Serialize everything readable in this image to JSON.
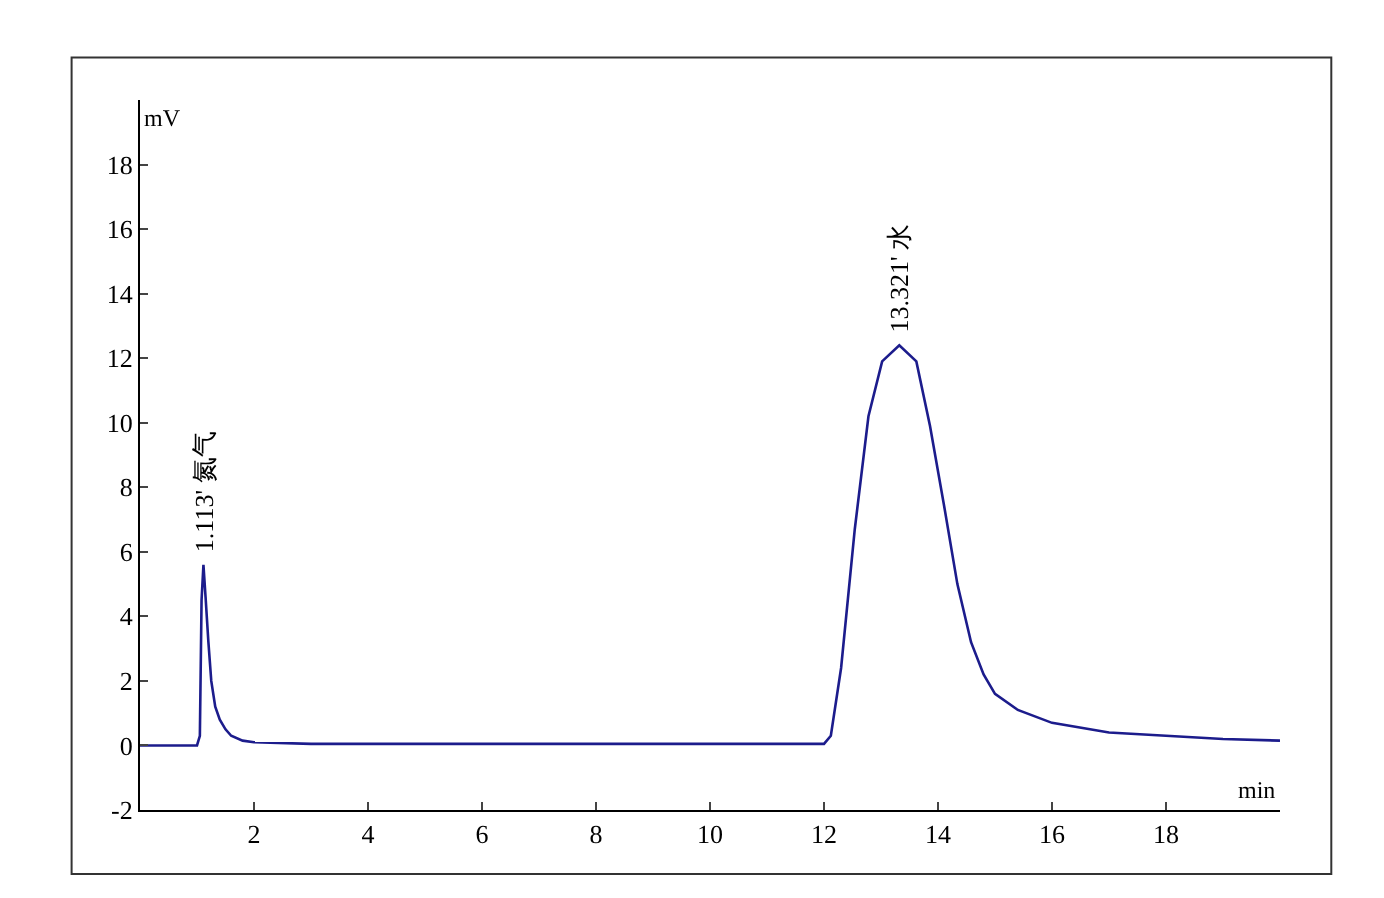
{
  "chart_data": {
    "type": "line",
    "xlabel": "min",
    "ylabel": "mV",
    "x": [
      0,
      1.0,
      1.05,
      1.08,
      1.113,
      1.15,
      1.2,
      1.25,
      1.32,
      1.4,
      1.5,
      1.6,
      1.8,
      2.0,
      3,
      4,
      5,
      6,
      7,
      8,
      9,
      10,
      11,
      12.0,
      12.12,
      12.3,
      12.54,
      12.78,
      13.02,
      13.321,
      13.62,
      13.86,
      14.1,
      14.34,
      14.58,
      14.8,
      15.0,
      15.4,
      16.0,
      17.0,
      18.0,
      19.0,
      20.0
    ],
    "series": [
      {
        "color": "#1c1c8c",
        "values": [
          0,
          0,
          0.3,
          4.5,
          5.6,
          4.6,
          3.2,
          2.0,
          1.2,
          0.8,
          0.5,
          0.3,
          0.15,
          0.1,
          0.05,
          0.05,
          0.05,
          0.05,
          0.05,
          0.05,
          0.05,
          0.05,
          0.05,
          0.05,
          0.3,
          2.4,
          6.7,
          10.2,
          11.9,
          12.4,
          11.9,
          9.9,
          7.5,
          5.0,
          3.2,
          2.2,
          1.6,
          1.1,
          0.7,
          0.4,
          0.3,
          0.2,
          0.15
        ]
      }
    ],
    "annotations": [
      {
        "text": "1.113' 氮气",
        "x": 1.113,
        "y": 5.6
      },
      {
        "text": "13.321' 水",
        "x": 13.321,
        "y": 12.4
      }
    ],
    "xlim": [
      0,
      20
    ],
    "xticks": [
      2,
      4,
      6,
      8,
      10,
      12,
      14,
      16,
      18
    ],
    "ylim": [
      -2,
      20
    ],
    "yticks": [
      -2,
      0,
      2,
      4,
      6,
      8,
      10,
      12,
      14,
      16,
      18
    ],
    "marker": "none",
    "line_style": "solid"
  }
}
